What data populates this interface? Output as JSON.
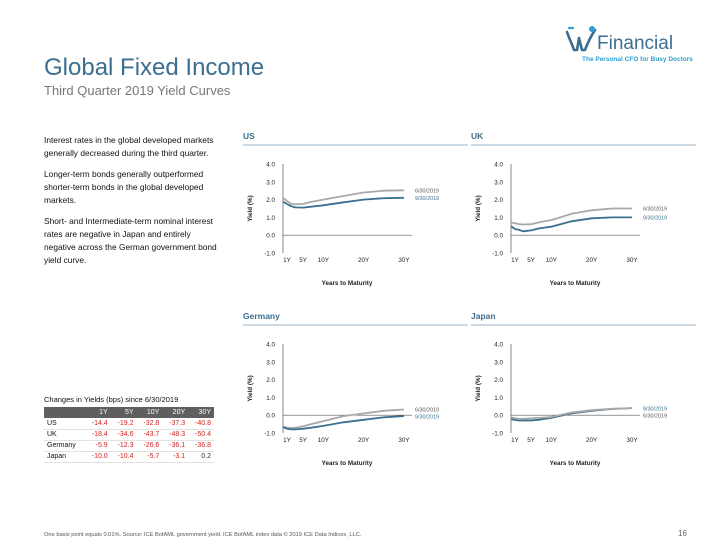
{
  "header": {
    "title": "Global Fixed Income",
    "subtitle": "Third Quarter 2019 Yield Curves"
  },
  "logo": {
    "name": "Financial",
    "tagline": "The Personal CFO for Busy Doctors",
    "color": "#3b6e8f"
  },
  "bullets": [
    "Interest rates in the global developed markets generally decreased during the third quarter.",
    "Longer-term bonds generally outperformed shorter-term bonds in the global developed markets.",
    "Short- and Intermediate-term nominal interest rates are negative in Japan and entirely negative across the German government bond yield curve."
  ],
  "changes": {
    "title": "Changes in Yields (bps) since 6/30/2019",
    "columns": [
      "",
      "1Y",
      "5Y",
      "10Y",
      "20Y",
      "30Y"
    ],
    "rows": [
      {
        "country": "US",
        "values": [
          "-14.4",
          "-19.2",
          "-32.8",
          "-37.3",
          "-40.8"
        ]
      },
      {
        "country": "UK",
        "values": [
          "-18.4",
          "-34.6",
          "-43.7",
          "-48.3",
          "-50.4"
        ]
      },
      {
        "country": "Germany",
        "values": [
          "-5.9",
          "-12.3",
          "-26.6",
          "-36.1",
          "-36.8"
        ]
      },
      {
        "country": "Japan",
        "values": [
          "-10.0",
          "-10.4",
          "-5.7",
          "-3.1",
          "0.2"
        ]
      }
    ]
  },
  "chart_data": [
    {
      "type": "line",
      "title": "US",
      "xlabel": "Years to Maturity",
      "ylabel": "Yield (%)",
      "ylim": [
        -1.0,
        4.0
      ],
      "yticks": [
        "4.0",
        "3.0",
        "2.0",
        "1.0",
        "0.0",
        "-1.0"
      ],
      "ytick_values": [
        4,
        3,
        2,
        1,
        0,
        -1
      ],
      "xticks": [
        "1Y",
        "5Y",
        "10Y",
        "20Y",
        "30Y"
      ],
      "xtick_values": [
        1,
        5,
        10,
        20,
        30
      ],
      "xlim": [
        0,
        32
      ],
      "series": [
        {
          "name": "6/30/2019",
          "color": "#a8a8a8",
          "x": [
            0,
            1,
            2,
            3,
            5,
            7,
            10,
            15,
            20,
            25,
            30
          ],
          "y": [
            2.1,
            1.92,
            1.77,
            1.73,
            1.76,
            1.87,
            2.0,
            2.2,
            2.4,
            2.5,
            2.52
          ]
        },
        {
          "name": "9/30/2019",
          "color": "#3a7090",
          "x": [
            0,
            1,
            2,
            3,
            5,
            7,
            10,
            15,
            20,
            25,
            30
          ],
          "y": [
            1.88,
            1.75,
            1.63,
            1.56,
            1.55,
            1.6,
            1.68,
            1.85,
            2.0,
            2.08,
            2.1
          ]
        }
      ]
    },
    {
      "type": "line",
      "title": "UK",
      "xlabel": "Years to Maturity",
      "ylabel": "Yield (%)",
      "ylim": [
        -1.0,
        4.0
      ],
      "yticks": [
        "4.0",
        "3.0",
        "2.0",
        "1.0",
        "0.0",
        "-1.0"
      ],
      "ytick_values": [
        4,
        3,
        2,
        1,
        0,
        -1
      ],
      "xticks": [
        "1Y",
        "5Y",
        "10Y",
        "20Y",
        "30Y"
      ],
      "xtick_values": [
        1,
        5,
        10,
        20,
        30
      ],
      "xlim": [
        0,
        32
      ],
      "series": [
        {
          "name": "6/30/2019",
          "color": "#a8a8a8",
          "x": [
            0,
            1,
            2,
            3,
            5,
            7,
            10,
            15,
            20,
            25,
            30
          ],
          "y": [
            0.7,
            0.68,
            0.62,
            0.6,
            0.62,
            0.73,
            0.85,
            1.2,
            1.4,
            1.5,
            1.5
          ]
        },
        {
          "name": "9/30/2019",
          "color": "#3a7090",
          "x": [
            0,
            1,
            2,
            3,
            5,
            7,
            10,
            15,
            20,
            25,
            30
          ],
          "y": [
            0.5,
            0.35,
            0.3,
            0.22,
            0.27,
            0.38,
            0.48,
            0.78,
            0.95,
            1.0,
            1.0
          ]
        }
      ]
    },
    {
      "type": "line",
      "title": "Germany",
      "xlabel": "Years to Maturity",
      "ylabel": "Yield (%)",
      "ylim": [
        -1.0,
        4.0
      ],
      "yticks": [
        "4.0",
        "3.0",
        "2.0",
        "1.0",
        "0.0",
        "-1.0"
      ],
      "ytick_values": [
        4,
        3,
        2,
        1,
        0,
        -1
      ],
      "xticks": [
        "1Y",
        "5Y",
        "10Y",
        "20Y",
        "30Y"
      ],
      "xtick_values": [
        1,
        5,
        10,
        20,
        30
      ],
      "xlim": [
        0,
        32
      ],
      "series": [
        {
          "name": "6/30/2019",
          "color": "#a8a8a8",
          "x": [
            0,
            1,
            2,
            3,
            5,
            7,
            10,
            15,
            20,
            25,
            30
          ],
          "y": [
            -0.62,
            -0.7,
            -0.72,
            -0.7,
            -0.62,
            -0.5,
            -0.33,
            -0.05,
            0.1,
            0.25,
            0.32
          ]
        },
        {
          "name": "9/30/2019",
          "color": "#3a7090",
          "x": [
            0,
            1,
            2,
            3,
            5,
            7,
            10,
            15,
            20,
            25,
            30
          ],
          "y": [
            -0.68,
            -0.76,
            -0.8,
            -0.8,
            -0.76,
            -0.7,
            -0.6,
            -0.4,
            -0.26,
            -0.12,
            -0.05
          ]
        }
      ]
    },
    {
      "type": "line",
      "title": "Japan",
      "xlabel": "Years to Maturity",
      "ylabel": "Yield (%)",
      "ylim": [
        -1.0,
        4.0
      ],
      "yticks": [
        "4.0",
        "3.0",
        "2.0",
        "1.0",
        "0.0",
        "-1.0"
      ],
      "ytick_values": [
        4,
        3,
        2,
        1,
        0,
        -1
      ],
      "xticks": [
        "1Y",
        "5Y",
        "10Y",
        "20Y",
        "30Y"
      ],
      "xtick_values": [
        1,
        5,
        10,
        20,
        30
      ],
      "xlim": [
        0,
        32
      ],
      "series": [
        {
          "name": "9/30/2019",
          "color": "#3a7090",
          "x": [
            0,
            1,
            2,
            3,
            5,
            7,
            10,
            15,
            20,
            25,
            30
          ],
          "y": [
            -0.22,
            -0.27,
            -0.3,
            -0.3,
            -0.3,
            -0.25,
            -0.15,
            0.1,
            0.25,
            0.35,
            0.4
          ]
        },
        {
          "name": "6/30/2019",
          "color": "#a8a8a8",
          "x": [
            0,
            1,
            2,
            3,
            5,
            7,
            10,
            15,
            20,
            25,
            30
          ],
          "y": [
            -0.12,
            -0.17,
            -0.2,
            -0.2,
            -0.18,
            -0.15,
            -0.1,
            0.15,
            0.28,
            0.36,
            0.4
          ]
        }
      ]
    }
  ],
  "footer": {
    "footnote": "One basis point equals 0.01%. Source: ICE BofAML government yield. ICE BofAML index data © 2019 ICE Data Indices, LLC.",
    "page": "16"
  }
}
